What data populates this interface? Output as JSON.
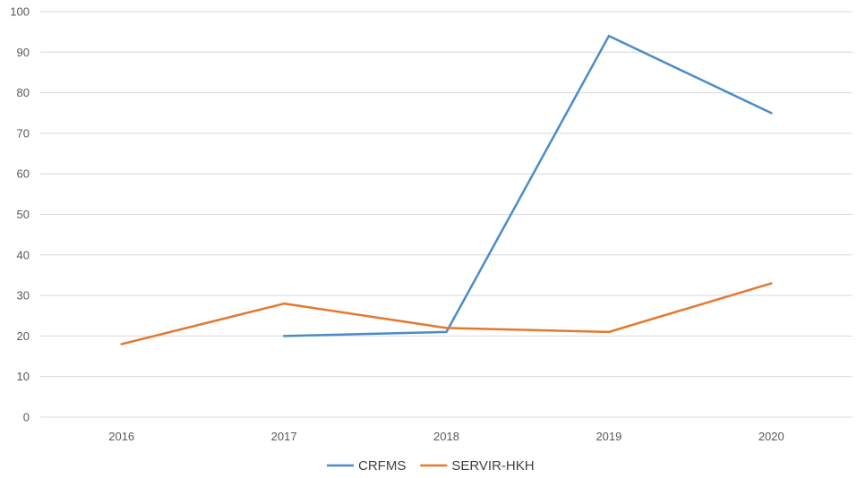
{
  "chart_data": {
    "type": "line",
    "title": "",
    "xlabel": "",
    "ylabel": "",
    "categories": [
      "2016",
      "2017",
      "2018",
      "2019",
      "2020"
    ],
    "ylim": [
      0,
      100
    ],
    "yticks": [
      0,
      10,
      20,
      30,
      40,
      50,
      60,
      70,
      80,
      90,
      100
    ],
    "grid": true,
    "legend_position": "bottom",
    "series": [
      {
        "name": "CRFMS",
        "color": "#4a8cc9",
        "values": [
          null,
          20,
          21,
          94,
          75
        ]
      },
      {
        "name": "SERVIR-HKH",
        "color": "#e6782e",
        "values": [
          18,
          28,
          22,
          21,
          33
        ]
      }
    ]
  }
}
